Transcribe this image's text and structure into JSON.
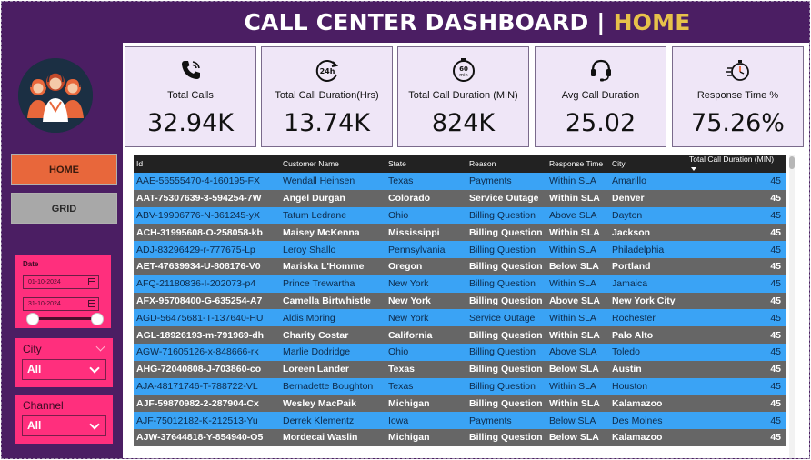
{
  "header": {
    "title_main": "CALL CENTER DASHBOARD |",
    "title_accent": "HOME"
  },
  "nav": {
    "home_label": "HOME",
    "grid_label": "GRID"
  },
  "filters": {
    "date": {
      "label": "Date",
      "start": "01-10-2024",
      "end": "31-10-2024"
    },
    "city": {
      "label": "City",
      "selected": "All"
    },
    "channel": {
      "label": "Channel",
      "selected": "All"
    }
  },
  "kpis": [
    {
      "label": "Total Calls",
      "value": "32.94K",
      "icon": "phone-icon"
    },
    {
      "label": "Total Call Duration(Hrs)",
      "value": "13.74K",
      "icon": "24h-clock-icon"
    },
    {
      "label": "Total Call Duration (MIN)",
      "value": "824K",
      "icon": "60-min-timer-icon"
    },
    {
      "label": "Avg Call Duration",
      "value": "25.02",
      "icon": "headset-icon"
    },
    {
      "label": "Response Time %",
      "value": "75.26%",
      "icon": "stopwatch-icon"
    }
  ],
  "table": {
    "columns": [
      "Id",
      "Customer Name",
      "State",
      "Reason",
      "Response Time",
      "City",
      "Total Call Duration (MIN)"
    ],
    "rows": [
      [
        "AAE-56555470-4-160195-FX",
        "Wendall Heinsen",
        "Texas",
        "Payments",
        "Within SLA",
        "Amarillo",
        "45"
      ],
      [
        "AAT-75307639-3-594254-7W",
        "Angel Durgan",
        "Colorado",
        "Service Outage",
        "Within SLA",
        "Denver",
        "45"
      ],
      [
        "ABV-19906776-N-361245-yX",
        "Tatum Ledrane",
        "Ohio",
        "Billing Question",
        "Above SLA",
        "Dayton",
        "45"
      ],
      [
        "ACH-31995608-O-258058-kb",
        "Maisey McKenna",
        "Mississippi",
        "Billing Question",
        "Within SLA",
        "Jackson",
        "45"
      ],
      [
        "ADJ-83296429-r-777675-Lp",
        "Leroy Shallo",
        "Pennsylvania",
        "Billing Question",
        "Within SLA",
        "Philadelphia",
        "45"
      ],
      [
        "AET-47639934-U-808176-V0",
        "Mariska L'Homme",
        "Oregon",
        "Billing Question",
        "Below SLA",
        "Portland",
        "45"
      ],
      [
        "AFQ-21180836-I-202073-p4",
        "Prince Trewartha",
        "New York",
        "Billing Question",
        "Within SLA",
        "Jamaica",
        "45"
      ],
      [
        "AFX-95708400-G-635254-A7",
        "Camella Birtwhistle",
        "New York",
        "Billing Question",
        "Above SLA",
        "New York City",
        "45"
      ],
      [
        "AGD-56475681-T-137640-HU",
        "Aldis Moring",
        "New York",
        "Service Outage",
        "Within SLA",
        "Rochester",
        "45"
      ],
      [
        "AGL-18926193-m-791969-dh",
        "Charity Costar",
        "California",
        "Billing Question",
        "Within SLA",
        "Palo Alto",
        "45"
      ],
      [
        "AGW-71605126-x-848666-rk",
        "Marlie Dodridge",
        "Ohio",
        "Billing Question",
        "Above SLA",
        "Toledo",
        "45"
      ],
      [
        "AHG-72040808-J-703860-co",
        "Loreen Lander",
        "Texas",
        "Billing Question",
        "Below SLA",
        "Austin",
        "45"
      ],
      [
        "AJA-48171746-T-788722-VL",
        "Bernadette Boughton",
        "Texas",
        "Billing Question",
        "Within SLA",
        "Houston",
        "45"
      ],
      [
        "AJF-59870982-2-287904-Cx",
        "Wesley MacPaik",
        "Michigan",
        "Billing Question",
        "Within SLA",
        "Kalamazoo",
        "45"
      ],
      [
        "AJF-75012182-K-212513-Yu",
        "Derrek Klementz",
        "Iowa",
        "Payments",
        "Below SLA",
        "Des Moines",
        "45"
      ],
      [
        "AJW-37644818-Y-854940-O5",
        "Mordecai Waslin",
        "Michigan",
        "Billing Question",
        "Below SLA",
        "Kalamazoo",
        "45"
      ]
    ]
  }
}
